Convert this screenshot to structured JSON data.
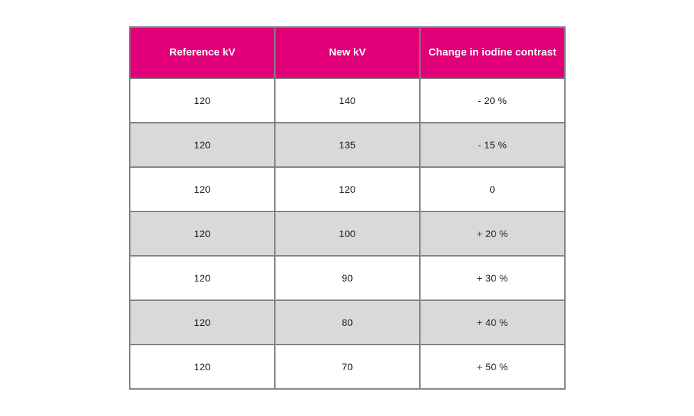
{
  "page": {
    "background_color": "#ffffff"
  },
  "table": {
    "accent_color": "#e2007a",
    "alt_row_color": "#d9d9d9",
    "border_color": "#808080",
    "header_text_color": "#ffffff",
    "body_text_color": "#1a1a1a",
    "headers": [
      "Reference kV",
      "New kV",
      "Change in iodine contrast"
    ],
    "rows": [
      [
        "120",
        "140",
        "- 20 %"
      ],
      [
        "120",
        "135",
        "- 15 %"
      ],
      [
        "120",
        "120",
        "0"
      ],
      [
        "120",
        "100",
        "+ 20 %"
      ],
      [
        "120",
        "90",
        "+ 30 %"
      ],
      [
        "120",
        "80",
        "+ 40 %"
      ],
      [
        "120",
        "70",
        "+ 50 %"
      ]
    ]
  },
  "chart_data": {
    "type": "table",
    "title": "",
    "columns": [
      "Reference kV",
      "New kV",
      "Change in iodine contrast"
    ],
    "rows": [
      {
        "reference_kv": 120,
        "new_kv": 140,
        "change_in_iodine_contrast": "- 20 %"
      },
      {
        "reference_kv": 120,
        "new_kv": 135,
        "change_in_iodine_contrast": "- 15 %"
      },
      {
        "reference_kv": 120,
        "new_kv": 120,
        "change_in_iodine_contrast": "0"
      },
      {
        "reference_kv": 120,
        "new_kv": 100,
        "change_in_iodine_contrast": "+ 20 %"
      },
      {
        "reference_kv": 120,
        "new_kv": 90,
        "change_in_iodine_contrast": "+ 30 %"
      },
      {
        "reference_kv": 120,
        "new_kv": 80,
        "change_in_iodine_contrast": "+ 40 %"
      },
      {
        "reference_kv": 120,
        "new_kv": 70,
        "change_in_iodine_contrast": "+ 50 %"
      }
    ],
    "layout": {
      "header_background": "#e2007a",
      "alternating_rows": true,
      "grid": true
    }
  }
}
